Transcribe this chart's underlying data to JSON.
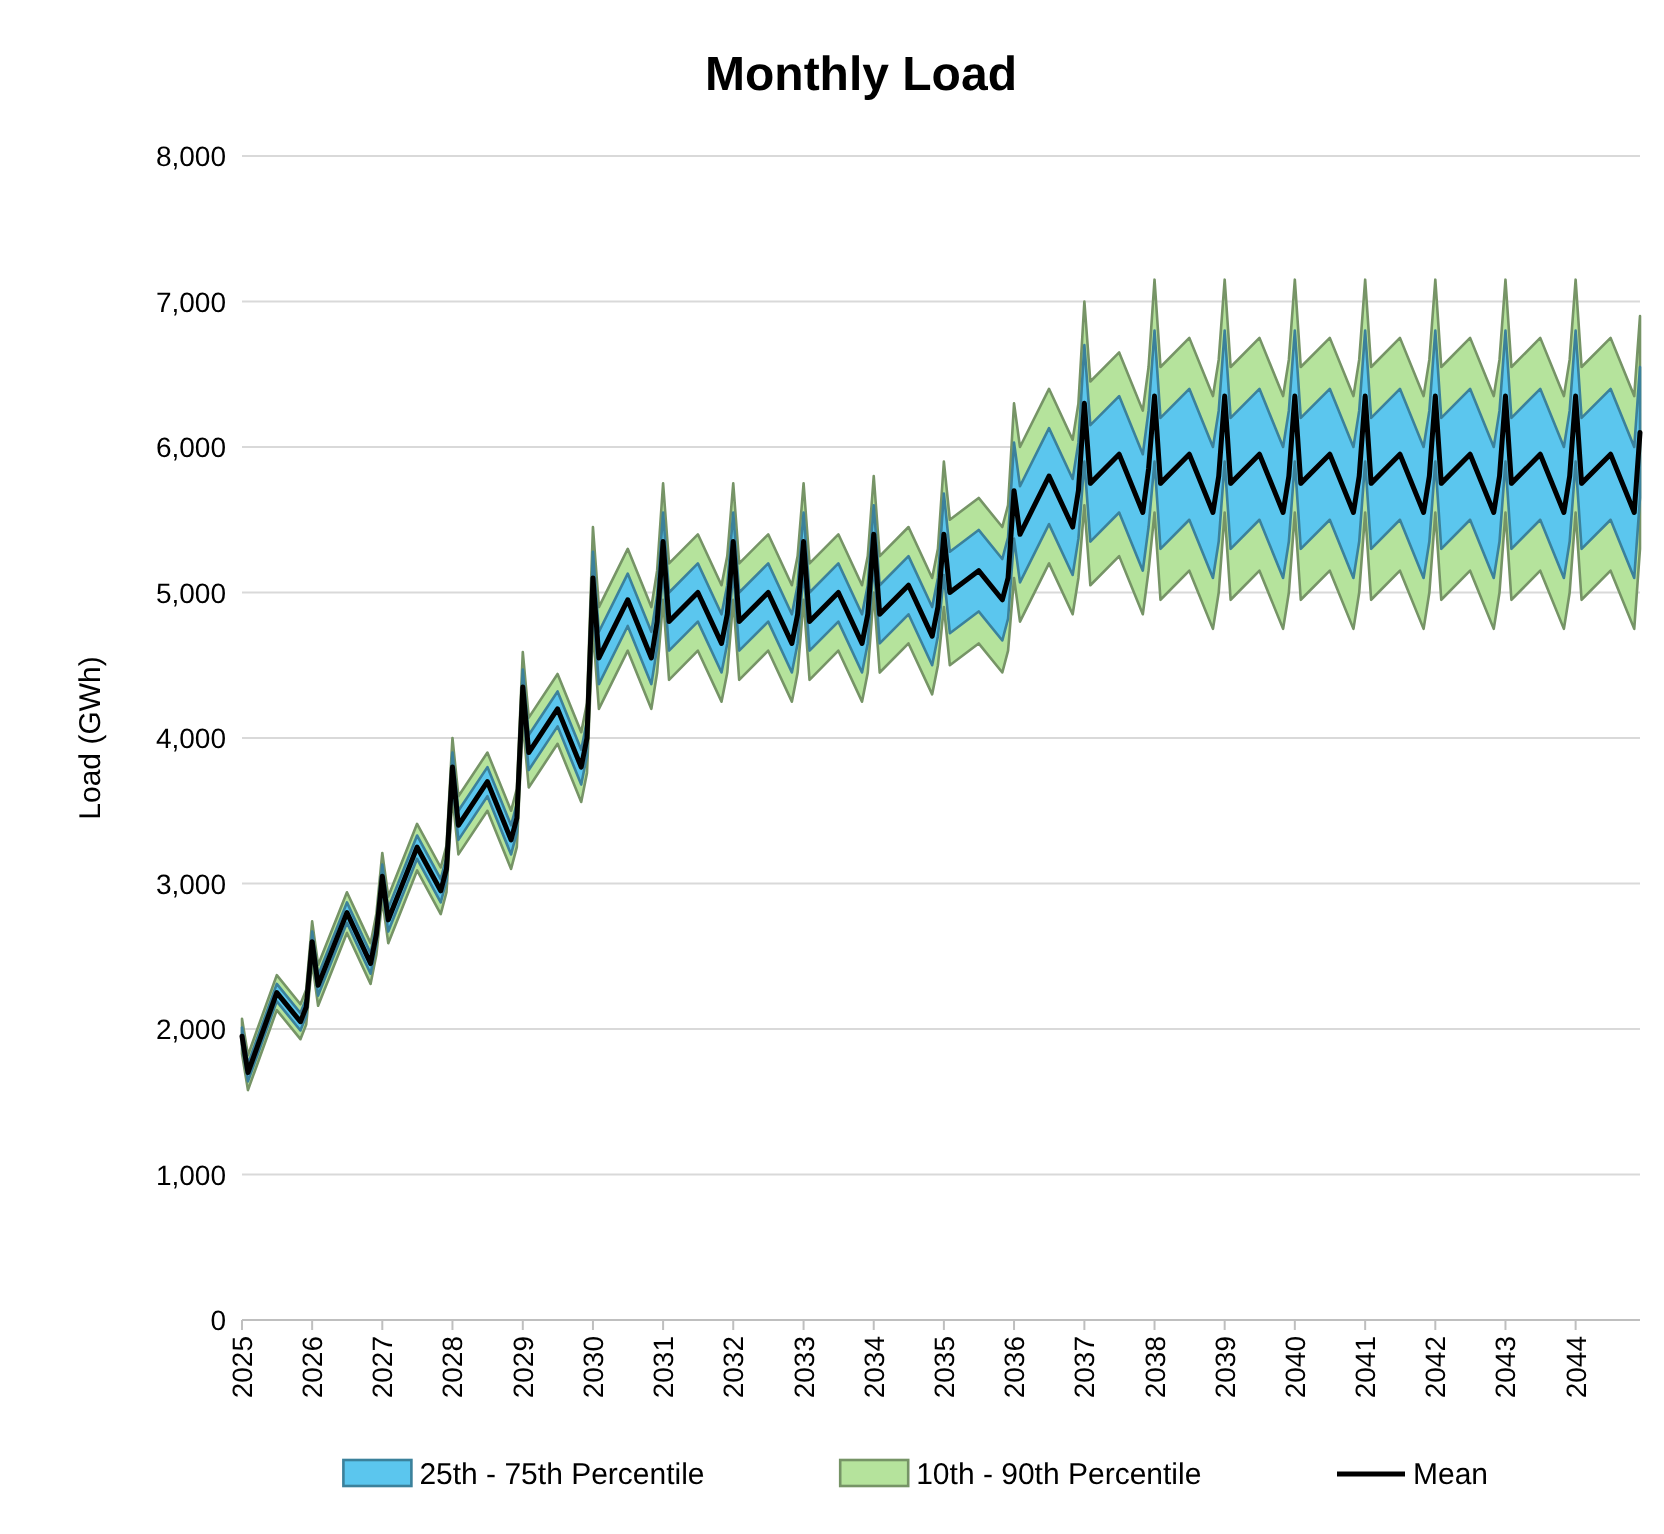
{
  "chart_data": {
    "type": "line",
    "title": "Monthly Load",
    "ylabel": "Load (GWh)",
    "x": [
      "2025-01",
      "2025-02",
      "2025-07",
      "2025-11",
      "2025-12",
      "2026-01",
      "2026-02",
      "2026-07",
      "2026-11",
      "2026-12",
      "2027-01",
      "2027-02",
      "2027-07",
      "2027-11",
      "2027-12",
      "2028-01",
      "2028-02",
      "2028-07",
      "2028-11",
      "2028-12",
      "2029-01",
      "2029-02",
      "2029-07",
      "2029-11",
      "2029-12",
      "2030-01",
      "2030-02",
      "2030-07",
      "2030-11",
      "2030-12",
      "2031-01",
      "2031-02",
      "2031-07",
      "2031-11",
      "2031-12",
      "2032-01",
      "2032-02",
      "2032-07",
      "2032-11",
      "2032-12",
      "2033-01",
      "2033-02",
      "2033-07",
      "2033-11",
      "2033-12",
      "2034-01",
      "2034-02",
      "2034-07",
      "2034-11",
      "2034-12",
      "2035-01",
      "2035-02",
      "2035-07",
      "2035-11",
      "2035-12",
      "2036-01",
      "2036-02",
      "2036-07",
      "2036-11",
      "2036-12",
      "2037-01",
      "2037-02",
      "2037-07",
      "2037-11",
      "2037-12",
      "2038-01",
      "2038-02",
      "2038-07",
      "2038-11",
      "2038-12",
      "2039-01",
      "2039-02",
      "2039-07",
      "2039-11",
      "2039-12",
      "2040-01",
      "2040-02",
      "2040-07",
      "2040-11",
      "2040-12",
      "2041-01",
      "2041-02",
      "2041-07",
      "2041-11",
      "2041-12",
      "2042-01",
      "2042-02",
      "2042-07",
      "2042-11",
      "2042-12",
      "2043-01",
      "2043-02",
      "2043-07",
      "2043-11",
      "2043-12",
      "2044-01",
      "2044-02",
      "2044-07",
      "2044-11",
      "2044-12"
    ],
    "series": [
      {
        "name": "25th - 75th Percentile",
        "color": "#5bc6ee",
        "values": [
          null,
          null,
          null,
          null,
          null,
          null,
          null,
          null,
          null,
          null,
          null,
          null,
          null,
          null,
          null,
          null,
          null,
          null,
          null,
          null,
          null,
          null,
          null,
          null,
          null,
          null,
          null,
          null,
          null,
          null,
          null,
          null,
          null,
          null,
          null,
          null,
          null,
          null,
          null,
          null,
          null,
          null,
          null,
          null,
          null,
          null,
          null,
          null,
          null,
          null,
          null,
          null,
          null,
          null,
          null,
          null,
          null,
          null,
          null,
          null,
          null,
          null,
          null,
          null,
          null,
          null,
          null,
          null,
          null,
          null,
          null,
          null,
          null,
          null,
          null,
          null,
          null,
          null,
          null,
          null,
          null,
          null,
          null,
          null,
          null,
          null,
          null,
          null,
          null,
          null,
          null,
          null,
          null,
          null,
          null,
          null,
          null,
          null,
          null,
          null
        ],
        "lower": [
          1890,
          1640,
          2190,
          1990,
          2090,
          2530,
          2230,
          2730,
          2380,
          2580,
          2970,
          2670,
          3170,
          2870,
          3020,
          3700,
          3300,
          3600,
          3200,
          3350,
          4230,
          3780,
          4080,
          3680,
          3880,
          4920,
          4370,
          4770,
          4370,
          4620,
          5150,
          4600,
          4800,
          4450,
          4650,
          5150,
          4600,
          4800,
          4450,
          4650,
          5150,
          4600,
          4800,
          4450,
          4650,
          5200,
          4650,
          4850,
          4500,
          4700,
          5120,
          4720,
          4870,
          4670,
          4820,
          5370,
          5070,
          5470,
          5120,
          5370,
          5900,
          5350,
          5550,
          5150,
          5450,
          5900,
          5300,
          5500,
          5100,
          5350,
          5900,
          5300,
          5500,
          5100,
          5350,
          5900,
          5300,
          5500,
          5100,
          5350,
          5900,
          5300,
          5500,
          5100,
          5350,
          5900,
          5300,
          5500,
          5100,
          5350,
          5900,
          5300,
          5500,
          5100,
          5350,
          5900,
          5300,
          5500,
          5100,
          5650
        ],
        "upper": [
          2010,
          1760,
          2310,
          2110,
          2210,
          2670,
          2370,
          2870,
          2520,
          2720,
          3130,
          2830,
          3330,
          3030,
          3180,
          3900,
          3500,
          3800,
          3400,
          3550,
          4470,
          4020,
          4320,
          3920,
          4120,
          5280,
          4730,
          5130,
          4730,
          4980,
          5550,
          5000,
          5200,
          4850,
          5050,
          5550,
          5000,
          5200,
          4850,
          5050,
          5550,
          5000,
          5200,
          4850,
          5050,
          5600,
          5050,
          5250,
          4900,
          5100,
          5680,
          5280,
          5430,
          5230,
          5380,
          6030,
          5730,
          6130,
          5780,
          6030,
          6700,
          6150,
          6350,
          5950,
          6250,
          6800,
          6200,
          6400,
          6000,
          6250,
          6800,
          6200,
          6400,
          6000,
          6250,
          6800,
          6200,
          6400,
          6000,
          6250,
          6800,
          6200,
          6400,
          6000,
          6250,
          6800,
          6200,
          6400,
          6000,
          6250,
          6800,
          6200,
          6400,
          6000,
          6250,
          6800,
          6200,
          6400,
          6000,
          6550
        ]
      },
      {
        "name": "10th - 90th Percentile",
        "color": "#b5e39c",
        "values": [
          null,
          null,
          null,
          null,
          null,
          null,
          null,
          null,
          null,
          null,
          null,
          null,
          null,
          null,
          null,
          null,
          null,
          null,
          null,
          null,
          null,
          null,
          null,
          null,
          null,
          null,
          null,
          null,
          null,
          null,
          null,
          null,
          null,
          null,
          null,
          null,
          null,
          null,
          null,
          null,
          null,
          null,
          null,
          null,
          null,
          null,
          null,
          null,
          null,
          null,
          null,
          null,
          null,
          null,
          null,
          null,
          null,
          null,
          null,
          null,
          null,
          null,
          null,
          null,
          null,
          null,
          null,
          null,
          null,
          null,
          null,
          null,
          null,
          null,
          null,
          null,
          null,
          null,
          null,
          null,
          null,
          null,
          null,
          null,
          null,
          null,
          null,
          null,
          null,
          null,
          null,
          null,
          null,
          null,
          null,
          null,
          null,
          null,
          null,
          null
        ],
        "lower": [
          1830,
          1580,
          2130,
          1930,
          2030,
          2460,
          2160,
          2660,
          2310,
          2510,
          2890,
          2590,
          3090,
          2790,
          2940,
          3600,
          3200,
          3500,
          3100,
          3250,
          4110,
          3660,
          3960,
          3560,
          3760,
          4750,
          4200,
          4600,
          4200,
          4450,
          4950,
          4400,
          4600,
          4250,
          4450,
          4950,
          4400,
          4600,
          4250,
          4450,
          4950,
          4400,
          4600,
          4250,
          4450,
          5000,
          4450,
          4650,
          4300,
          4500,
          4900,
          4500,
          4650,
          4450,
          4600,
          5100,
          4800,
          5200,
          4850,
          5100,
          5600,
          5050,
          5250,
          4850,
          5150,
          5550,
          4950,
          5150,
          4750,
          5000,
          5550,
          4950,
          5150,
          4750,
          5000,
          5550,
          4950,
          5150,
          4750,
          5000,
          5550,
          4950,
          5150,
          4750,
          5000,
          5550,
          4950,
          5150,
          4750,
          5000,
          5550,
          4950,
          5150,
          4750,
          5000,
          5550,
          4950,
          5150,
          4750,
          5300
        ],
        "upper": [
          2070,
          1820,
          2370,
          2170,
          2270,
          2740,
          2440,
          2940,
          2590,
          2790,
          3210,
          2910,
          3410,
          3110,
          3260,
          4000,
          3600,
          3900,
          3500,
          3650,
          4590,
          4140,
          4440,
          4040,
          4240,
          5450,
          4900,
          5300,
          4900,
          5150,
          5750,
          5200,
          5400,
          5050,
          5250,
          5750,
          5200,
          5400,
          5050,
          5250,
          5750,
          5200,
          5400,
          5050,
          5250,
          5800,
          5250,
          5450,
          5100,
          5300,
          5900,
          5500,
          5650,
          5450,
          5600,
          6300,
          6000,
          6400,
          6050,
          6300,
          7000,
          6450,
          6650,
          6250,
          6550,
          7150,
          6550,
          6750,
          6350,
          6600,
          7150,
          6550,
          6750,
          6350,
          6600,
          7150,
          6550,
          6750,
          6350,
          6600,
          7150,
          6550,
          6750,
          6350,
          6600,
          7150,
          6550,
          6750,
          6350,
          6600,
          7150,
          6550,
          6750,
          6350,
          6600,
          7150,
          6550,
          6750,
          6350,
          6900
        ]
      },
      {
        "name": "Mean",
        "type": "line",
        "color": "#000000",
        "values": [
          1950,
          1700,
          2250,
          2050,
          2150,
          2600,
          2300,
          2800,
          2450,
          2650,
          3050,
          2750,
          3250,
          2950,
          3100,
          3800,
          3400,
          3700,
          3300,
          3450,
          4350,
          3900,
          4200,
          3800,
          4000,
          5100,
          4550,
          4950,
          4550,
          4800,
          5350,
          4800,
          5000,
          4650,
          4850,
          5350,
          4800,
          5000,
          4650,
          4850,
          5350,
          4800,
          5000,
          4650,
          4850,
          5400,
          4850,
          5050,
          4700,
          4900,
          5400,
          5000,
          5150,
          4950,
          5100,
          5700,
          5400,
          5800,
          5450,
          5700,
          6300,
          5750,
          5950,
          5550,
          5850,
          6350,
          5750,
          5950,
          5550,
          5800,
          6350,
          5750,
          5950,
          5550,
          5800,
          6350,
          5750,
          5950,
          5550,
          5800,
          6350,
          5750,
          5950,
          5550,
          5800,
          6350,
          5750,
          5950,
          5550,
          5800,
          6350,
          5750,
          5950,
          5550,
          5800,
          6350,
          5750,
          5950,
          5550,
          6100
        ]
      }
    ],
    "xlim": [
      "2025-01",
      "2044-12"
    ],
    "xticks": [
      "2025",
      "2026",
      "2027",
      "2028",
      "2029",
      "2030",
      "2031",
      "2032",
      "2033",
      "2034",
      "2035",
      "2036",
      "2037",
      "2038",
      "2039",
      "2040",
      "2041",
      "2042",
      "2043",
      "2044"
    ],
    "ylim": [
      0,
      8000
    ],
    "yticks": [
      {
        "value": 0,
        "label": "0"
      },
      {
        "value": 1000,
        "label": "1,000"
      },
      {
        "value": 2000,
        "label": "2,000"
      },
      {
        "value": 3000,
        "label": "3,000"
      },
      {
        "value": 4000,
        "label": "4,000"
      },
      {
        "value": 5000,
        "label": "5,000"
      },
      {
        "value": 6000,
        "label": "6,000"
      },
      {
        "value": 7000,
        "label": "7,000"
      },
      {
        "value": 8000,
        "label": "8,000"
      }
    ],
    "grid": "y",
    "legend": "bottom",
    "line_style": "solid",
    "marker": "none"
  }
}
